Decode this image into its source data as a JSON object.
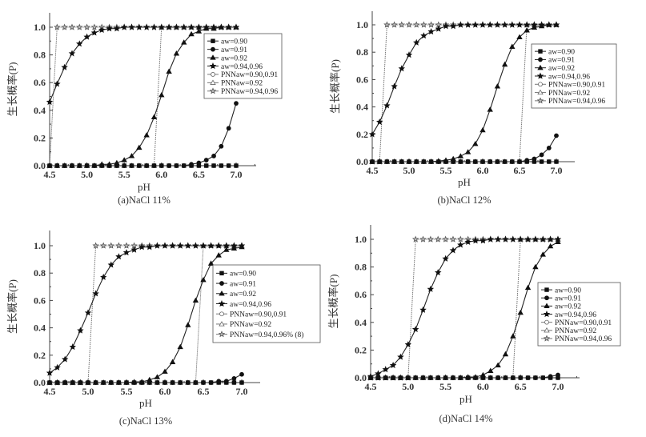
{
  "chart_data": [
    {
      "type": "line",
      "title": "(a)NaCl 11%",
      "xlabel": "pH",
      "ylabel": "生长概率(P)",
      "xlim": [
        4.5,
        7.0
      ],
      "ylim": [
        0.0,
        1.0
      ],
      "xticks": [
        "4.5",
        "5.0",
        "5.5",
        "6.0",
        "6.5",
        "7.0"
      ],
      "yticks": [
        "0.0",
        "0.2",
        "0.4",
        "0.6",
        "0.8",
        "1.0"
      ],
      "legend_position": "top-right",
      "x": [
        4.5,
        4.6,
        4.7,
        4.8,
        4.9,
        5.0,
        5.1,
        5.2,
        5.3,
        5.4,
        5.5,
        5.6,
        5.7,
        5.8,
        5.9,
        6.0,
        6.1,
        6.2,
        6.3,
        6.4,
        6.5,
        6.6,
        6.7,
        6.8,
        6.9,
        7.0
      ],
      "series": [
        {
          "name": "aw=0.90",
          "marker": "square",
          "values": [
            0,
            0,
            0,
            0,
            0,
            0,
            0,
            0,
            0,
            0,
            0,
            0,
            0,
            0,
            0,
            0,
            0,
            0,
            0,
            0,
            0,
            0,
            0,
            0,
            0,
            0
          ]
        },
        {
          "name": "aw=0.91",
          "marker": "circle",
          "values": [
            0,
            0,
            0,
            0,
            0,
            0,
            0,
            0,
            0,
            0,
            0,
            0,
            0,
            0,
            0,
            0,
            0,
            0,
            0,
            0.01,
            0.02,
            0.04,
            0.07,
            0.14,
            0.27,
            0.45
          ]
        },
        {
          "name": "aw=0.92",
          "marker": "triangle",
          "values": [
            0,
            0,
            0,
            0,
            0,
            0,
            0,
            0.01,
            0.01,
            0.02,
            0.04,
            0.07,
            0.13,
            0.22,
            0.35,
            0.51,
            0.68,
            0.81,
            0.89,
            0.95,
            0.97,
            0.99,
            0.99,
            1,
            1,
            1
          ]
        },
        {
          "name": "aw=0.94,0.96",
          "marker": "star",
          "values": [
            0.46,
            0.59,
            0.71,
            0.81,
            0.88,
            0.93,
            0.96,
            0.98,
            0.99,
            0.99,
            1,
            1,
            1,
            1,
            1,
            1,
            1,
            1,
            1,
            1,
            1,
            1,
            1,
            1,
            1,
            1
          ]
        },
        {
          "name": "PNNaw=0.90,0.91",
          "marker": "open-circle",
          "values": [
            0,
            0,
            0,
            0,
            0,
            0,
            0,
            0,
            0,
            0,
            0,
            0,
            0,
            0,
            0,
            0,
            0,
            0,
            0,
            0,
            0,
            0,
            0,
            0,
            0,
            0
          ]
        },
        {
          "name": "PNNaw=0.92",
          "marker": "open-triangle",
          "values": [
            0,
            0,
            0,
            0,
            0,
            0,
            0,
            0,
            0,
            0,
            0,
            0,
            0,
            0,
            0,
            1,
            1,
            1,
            1,
            1,
            1,
            1,
            1,
            1,
            1,
            1
          ]
        },
        {
          "name": "PNNaw=0.94,0.96",
          "marker": "open-star",
          "values": [
            0,
            1,
            1,
            1,
            1,
            1,
            1,
            1,
            1,
            1,
            1,
            1,
            1,
            1,
            1,
            1,
            1,
            1,
            1,
            1,
            1,
            1,
            1,
            1,
            1,
            1
          ]
        }
      ]
    },
    {
      "type": "line",
      "title": "(b)NaCl 12%",
      "xlabel": "pH",
      "ylabel": "生长概率(P)",
      "xlim": [
        4.5,
        7.0
      ],
      "ylim": [
        0.0,
        1.0
      ],
      "xticks": [
        "4.5",
        "5.0",
        "5.5",
        "6.0",
        "6.5",
        "7.0"
      ],
      "yticks": [
        "0.0",
        "0.2",
        "0.4",
        "0.6",
        "0.8",
        "1.0"
      ],
      "legend_position": "right",
      "x": [
        4.5,
        4.6,
        4.7,
        4.8,
        4.9,
        5.0,
        5.1,
        5.2,
        5.3,
        5.4,
        5.5,
        5.6,
        5.7,
        5.8,
        5.9,
        6.0,
        6.1,
        6.2,
        6.3,
        6.4,
        6.5,
        6.6,
        6.7,
        6.8,
        6.9,
        7.0
      ],
      "series": [
        {
          "name": "aw=0.90",
          "marker": "square",
          "values": [
            0,
            0,
            0,
            0,
            0,
            0,
            0,
            0,
            0,
            0,
            0,
            0,
            0,
            0,
            0,
            0,
            0,
            0,
            0,
            0,
            0,
            0,
            0,
            0,
            0,
            0
          ]
        },
        {
          "name": "aw=0.91",
          "marker": "circle",
          "values": [
            0,
            0,
            0,
            0,
            0,
            0,
            0,
            0,
            0,
            0,
            0,
            0,
            0,
            0,
            0,
            0,
            0,
            0,
            0,
            0,
            0,
            0.01,
            0.02,
            0.05,
            0.1,
            0.19
          ]
        },
        {
          "name": "aw=0.92",
          "marker": "triangle",
          "values": [
            0,
            0,
            0,
            0,
            0,
            0,
            0,
            0,
            0,
            0.005,
            0.01,
            0.02,
            0.04,
            0.07,
            0.13,
            0.23,
            0.38,
            0.55,
            0.71,
            0.84,
            0.91,
            0.96,
            0.98,
            0.99,
            1,
            1
          ]
        },
        {
          "name": "aw=0.94,0.96",
          "marker": "star",
          "values": [
            0.2,
            0.29,
            0.41,
            0.55,
            0.68,
            0.78,
            0.87,
            0.92,
            0.95,
            0.97,
            0.99,
            0.99,
            1,
            1,
            1,
            1,
            1,
            1,
            1,
            1,
            1,
            1,
            1,
            1,
            1,
            1
          ]
        },
        {
          "name": "PNNaw=0.90,0.91",
          "marker": "open-circle",
          "values": [
            0,
            0,
            0,
            0,
            0,
            0,
            0,
            0,
            0,
            0,
            0,
            0,
            0,
            0,
            0,
            0,
            0,
            0,
            0,
            0,
            0,
            0,
            0,
            0,
            0,
            0
          ]
        },
        {
          "name": "PNNaw=0.92",
          "marker": "open-triangle",
          "values": [
            0,
            0,
            0,
            0,
            0,
            0,
            0,
            0,
            0,
            0,
            0,
            0,
            0,
            0,
            0,
            0,
            0,
            0,
            0,
            0,
            0,
            1,
            1,
            1,
            1,
            1
          ]
        },
        {
          "name": "PNNaw=0.94,0.96",
          "marker": "open-star",
          "values": [
            0,
            0,
            1,
            1,
            1,
            1,
            1,
            1,
            1,
            1,
            1,
            1,
            1,
            1,
            1,
            1,
            1,
            1,
            1,
            1,
            1,
            1,
            1,
            1,
            1,
            1
          ]
        }
      ]
    },
    {
      "type": "line",
      "title": "(c)NaCl 13%",
      "xlabel": "pH",
      "ylabel": "生长概率(P)",
      "xlim": [
        4.5,
        7.0
      ],
      "ylim": [
        0.0,
        1.0
      ],
      "xticks": [
        "4.5",
        "5.0",
        "5.5",
        "6.0",
        "6.5",
        "7.0"
      ],
      "yticks": [
        "0.0",
        "0.2",
        "0.4",
        "0.6",
        "0.8",
        "1.0"
      ],
      "legend_position": "right",
      "x": [
        4.5,
        4.6,
        4.7,
        4.8,
        4.9,
        5.0,
        5.1,
        5.2,
        5.3,
        5.4,
        5.5,
        5.6,
        5.7,
        5.8,
        5.9,
        6.0,
        6.1,
        6.2,
        6.3,
        6.4,
        6.5,
        6.6,
        6.7,
        6.8,
        6.9,
        7.0
      ],
      "series": [
        {
          "name": "aw=0.90",
          "marker": "square",
          "values": [
            0,
            0,
            0,
            0,
            0,
            0,
            0,
            0,
            0,
            0,
            0,
            0,
            0,
            0,
            0,
            0,
            0,
            0,
            0,
            0,
            0,
            0,
            0,
            0,
            0,
            0
          ]
        },
        {
          "name": "aw=0.91",
          "marker": "circle",
          "values": [
            0,
            0,
            0,
            0,
            0,
            0,
            0,
            0,
            0,
            0,
            0,
            0,
            0,
            0,
            0,
            0,
            0,
            0,
            0,
            0,
            0,
            0,
            0.01,
            0.01,
            0.03,
            0.06
          ]
        },
        {
          "name": "aw=0.92",
          "marker": "triangle",
          "values": [
            0,
            0,
            0,
            0,
            0,
            0,
            0,
            0,
            0,
            0,
            0,
            0.005,
            0.005,
            0.02,
            0.04,
            0.08,
            0.15,
            0.26,
            0.42,
            0.6,
            0.75,
            0.87,
            0.93,
            0.97,
            0.98,
            0.99
          ]
        },
        {
          "name": "aw=0.94,0.96",
          "marker": "star",
          "values": [
            0.07,
            0.11,
            0.17,
            0.26,
            0.38,
            0.51,
            0.65,
            0.77,
            0.86,
            0.92,
            0.95,
            0.97,
            0.99,
            0.99,
            1,
            1,
            1,
            1,
            1,
            1,
            1,
            1,
            1,
            1,
            1,
            1
          ]
        },
        {
          "name": "PNNaw=0.90,0.91",
          "marker": "open-circle",
          "values": [
            0,
            0,
            0,
            0,
            0,
            0,
            0,
            0,
            0,
            0,
            0,
            0,
            0,
            0,
            0,
            0,
            0,
            0,
            0,
            0,
            0,
            0,
            0,
            0,
            0,
            0
          ]
        },
        {
          "name": "PNNaw=0.92",
          "marker": "open-triangle",
          "values": [
            0,
            0,
            0,
            0,
            0,
            0,
            0,
            0,
            0,
            0,
            0,
            0,
            0,
            0,
            0,
            0,
            0,
            0,
            0,
            0,
            1,
            1,
            1,
            1,
            1,
            1
          ]
        },
        {
          "name": "PNNaw=0.94,0.96% (8)",
          "marker": "open-star",
          "values": [
            0,
            0,
            0,
            0,
            0,
            0,
            1,
            1,
            1,
            1,
            1,
            1,
            1,
            1,
            1,
            1,
            1,
            1,
            1,
            1,
            1,
            1,
            1,
            1,
            1,
            1
          ]
        }
      ]
    },
    {
      "type": "line",
      "title": "(d)NaCl 14%",
      "xlabel": "pH",
      "ylabel": "生长概率(P)",
      "xlim": [
        4.5,
        7.0
      ],
      "ylim": [
        0.0,
        1.0
      ],
      "xticks": [
        "4.5",
        "5.0",
        "5.5",
        "6.0",
        "6.5",
        "7.0"
      ],
      "yticks": [
        "0.0",
        "0.2",
        "0.4",
        "0.6",
        "0.8",
        "1.0"
      ],
      "legend_position": "right",
      "x": [
        4.5,
        4.6,
        4.7,
        4.8,
        4.9,
        5.0,
        5.1,
        5.2,
        5.3,
        5.4,
        5.5,
        5.6,
        5.7,
        5.8,
        5.9,
        6.0,
        6.1,
        6.2,
        6.3,
        6.4,
        6.5,
        6.6,
        6.7,
        6.8,
        6.9,
        7.0
      ],
      "series": [
        {
          "name": "aw=0.90",
          "marker": "square",
          "values": [
            0,
            0,
            0,
            0,
            0,
            0,
            0,
            0,
            0,
            0,
            0,
            0,
            0,
            0,
            0,
            0,
            0,
            0,
            0,
            0,
            0,
            0,
            0,
            0,
            0,
            0
          ]
        },
        {
          "name": "aw=0.91",
          "marker": "circle",
          "values": [
            0,
            0,
            0,
            0,
            0,
            0,
            0,
            0,
            0,
            0,
            0,
            0,
            0,
            0,
            0,
            0,
            0,
            0,
            0,
            0,
            0,
            0,
            0,
            0,
            0.01,
            0.02
          ]
        },
        {
          "name": "aw=0.92",
          "marker": "triangle",
          "values": [
            0,
            0,
            0,
            0,
            0,
            0,
            0,
            0,
            0,
            0,
            0,
            0,
            0,
            0.005,
            0.005,
            0.02,
            0.05,
            0.09,
            0.17,
            0.3,
            0.47,
            0.65,
            0.8,
            0.89,
            0.95,
            0.98
          ]
        },
        {
          "name": "aw=0.94,0.96",
          "marker": "star",
          "values": [
            0.01,
            0.03,
            0.06,
            0.09,
            0.15,
            0.24,
            0.35,
            0.49,
            0.64,
            0.76,
            0.86,
            0.92,
            0.96,
            0.98,
            0.99,
            0.99,
            1,
            1,
            1,
            1,
            1,
            1,
            1,
            1,
            1,
            1
          ]
        },
        {
          "name": "PNNaw=0.90,0.91",
          "marker": "open-circle",
          "values": [
            0,
            0,
            0,
            0,
            0,
            0,
            0,
            0,
            0,
            0,
            0,
            0,
            0,
            0,
            0,
            0,
            0,
            0,
            0,
            0,
            0,
            0,
            0,
            0,
            0,
            0
          ]
        },
        {
          "name": "PNNaw=0.92",
          "marker": "open-triangle",
          "values": [
            0,
            0,
            0,
            0,
            0,
            0,
            0,
            0,
            0,
            0,
            0,
            0,
            0,
            0,
            0,
            0,
            0,
            0,
            0,
            0,
            1,
            1,
            1,
            1,
            1,
            1
          ]
        },
        {
          "name": "PNNaw=0.94,0.96",
          "marker": "open-star",
          "values": [
            0,
            0,
            0,
            0,
            0,
            0,
            1,
            1,
            1,
            1,
            1,
            1,
            1,
            1,
            1,
            1,
            1,
            1,
            1,
            1,
            1,
            1,
            1,
            1,
            1,
            1
          ]
        }
      ]
    }
  ]
}
